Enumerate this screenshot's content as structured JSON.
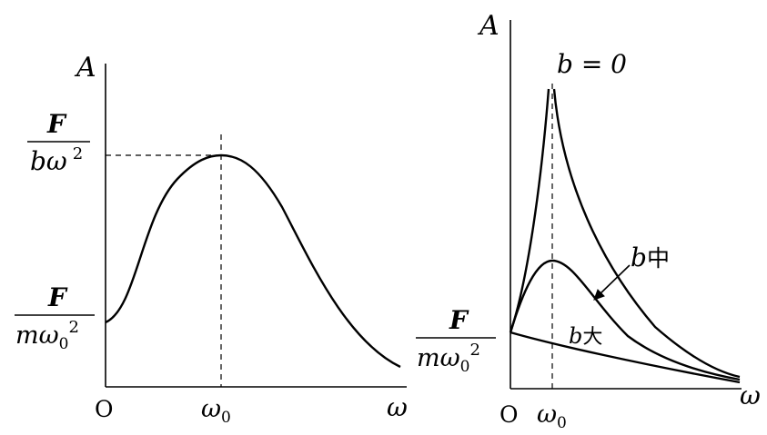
{
  "left_panel": {
    "y_axis_label": "A",
    "x_axis_label": "ω",
    "origin_label": "O",
    "omega0_label": "ω",
    "omega0_subscript": "0",
    "peak_value": {
      "numerator": "F",
      "denominator": "bω",
      "exponent": "2"
    },
    "start_value": {
      "numerator": "F",
      "denominator": "mω",
      "subscript": "0",
      "exponent": "2"
    }
  },
  "right_panel": {
    "y_axis_label": "A",
    "x_axis_label": "ω",
    "origin_label": "O",
    "omega0_label": "ω",
    "omega0_subscript": "0",
    "start_value": {
      "numerator": "F",
      "denominator": "mω",
      "subscript": "0",
      "exponent": "2"
    },
    "curves": {
      "zero_damping": "b = 0",
      "medium_damping": {
        "var": "b",
        "text": "中"
      },
      "large_damping": {
        "var": "b",
        "text": "大"
      }
    }
  },
  "colors": {
    "stroke": "#000000",
    "background": "#ffffff"
  }
}
